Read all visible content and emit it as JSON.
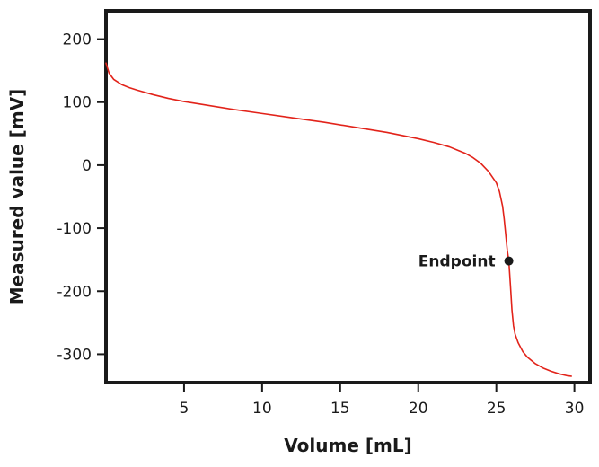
{
  "chart_data": {
    "type": "line",
    "title": "",
    "xlabel": "Volume [mL]",
    "ylabel": "Measured value [mV]",
    "xlim": [
      0,
      31
    ],
    "ylim": [
      -345,
      245
    ],
    "x_ticks": [
      5,
      10,
      15,
      20,
      25,
      30
    ],
    "x_tick_labels": [
      "5",
      "10",
      "15",
      "20",
      "25",
      "30"
    ],
    "y_ticks": [
      200,
      100,
      0,
      -100,
      -200,
      -300
    ],
    "y_tick_labels": [
      "200",
      "100",
      "0",
      "-100",
      "-200",
      "-300"
    ],
    "grid": false,
    "legend": "none",
    "series": [
      {
        "color": "#e2231a",
        "x": [
          0,
          0.2,
          0.5,
          1,
          1.5,
          2,
          3,
          4,
          5,
          6,
          8,
          10,
          12,
          14,
          16,
          18,
          19,
          20,
          21,
          22,
          23,
          23.5,
          24,
          24.5,
          25,
          25.2,
          25.4,
          25.5,
          25.6,
          25.7,
          25.8,
          25.9,
          26.0,
          26.1,
          26.2,
          26.4,
          26.7,
          27,
          27.5,
          28,
          28.5,
          29,
          29.5,
          29.8
        ],
        "y": [
          162,
          146,
          136,
          128,
          123,
          119,
          112,
          106,
          101,
          97,
          89,
          82,
          75,
          68,
          60,
          52,
          47,
          42,
          36,
          29,
          19,
          12,
          3,
          -10,
          -28,
          -42,
          -65,
          -85,
          -110,
          -135,
          -152,
          -190,
          -230,
          -255,
          -268,
          -282,
          -296,
          -305,
          -315,
          -322,
          -327,
          -331,
          -334,
          -335
        ]
      }
    ],
    "annotations": [
      {
        "label": "Endpoint",
        "x": 25.8,
        "y": -152,
        "marker": "circle",
        "label_side": "left"
      }
    ]
  }
}
